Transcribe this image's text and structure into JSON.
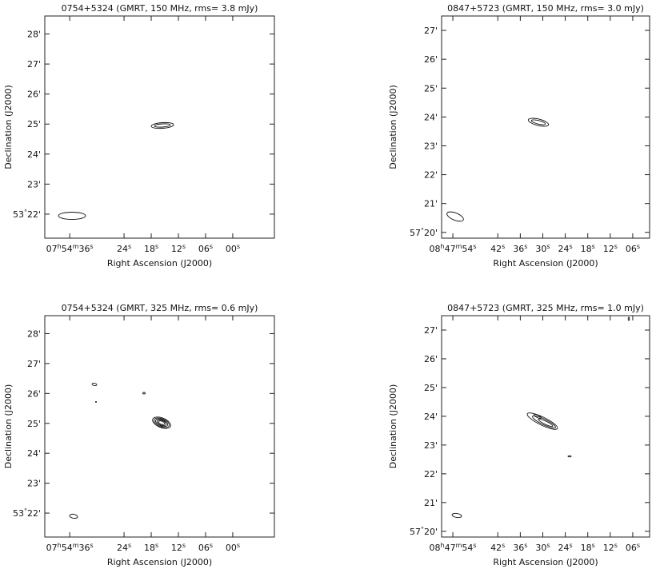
{
  "chart_data": [
    {
      "type": "contour",
      "title": "0754+5324 (GMRT, 150 MHz, rms= 3.8 mJy)",
      "xlabel": "Right Ascension (J2000)",
      "ylabel": "Declination (J2000)",
      "xlim": [
        41.5,
        -9.2
      ],
      "ylim": [
        21.2,
        28.6
      ],
      "xticks": [
        {
          "value": 36,
          "label": "07h54m36s"
        },
        {
          "value": 24,
          "label": "24s"
        },
        {
          "value": 18,
          "label": "18s"
        },
        {
          "value": 12,
          "label": "12s"
        },
        {
          "value": 6,
          "label": "06s"
        },
        {
          "value": 0,
          "label": "00s"
        }
      ],
      "yticks": [
        {
          "value": 22,
          "label": "53°22'"
        },
        {
          "value": 23,
          "label": "23'"
        },
        {
          "value": 24,
          "label": "24'"
        },
        {
          "value": 25,
          "label": "25'"
        },
        {
          "value": 26,
          "label": "26'"
        },
        {
          "value": 27,
          "label": "27'"
        },
        {
          "value": 28,
          "label": "28'"
        }
      ]
    },
    {
      "type": "contour",
      "title": "0847+5723 (GMRT, 150 MHz, rms= 3.0 mJy)",
      "xlabel": "Right Ascension (J2000)",
      "ylabel": "Declination (J2000)",
      "xlim": [
        57,
        1.5
      ],
      "ylim": [
        19.8,
        27.5
      ],
      "xticks": [
        {
          "value": 54,
          "label": "08h47m54s"
        },
        {
          "value": 42,
          "label": "42s"
        },
        {
          "value": 36,
          "label": "36s"
        },
        {
          "value": 30,
          "label": "30s"
        },
        {
          "value": 24,
          "label": "24s"
        },
        {
          "value": 18,
          "label": "18s"
        },
        {
          "value": 12,
          "label": "12s"
        },
        {
          "value": 6,
          "label": "06s"
        }
      ],
      "yticks": [
        {
          "value": 20,
          "label": "57°20'"
        },
        {
          "value": 21,
          "label": "21'"
        },
        {
          "value": 22,
          "label": "22'"
        },
        {
          "value": 23,
          "label": "23'"
        },
        {
          "value": 24,
          "label": "24'"
        },
        {
          "value": 25,
          "label": "25'"
        },
        {
          "value": 26,
          "label": "26'"
        },
        {
          "value": 27,
          "label": "27'"
        }
      ]
    },
    {
      "type": "contour",
      "title": "0754+5324 (GMRT, 325 MHz, rms= 0.6 mJy)",
      "xlabel": "Right Ascension (J2000)",
      "ylabel": "Declination (J2000)",
      "xlim": [
        41.5,
        -9.2
      ],
      "ylim": [
        21.2,
        28.6
      ],
      "xticks": [
        {
          "value": 36,
          "label": "07h54m36s"
        },
        {
          "value": 24,
          "label": "24s"
        },
        {
          "value": 18,
          "label": "18s"
        },
        {
          "value": 12,
          "label": "12s"
        },
        {
          "value": 6,
          "label": "06s"
        },
        {
          "value": 0,
          "label": "00s"
        }
      ],
      "yticks": [
        {
          "value": 22,
          "label": "53°22'"
        },
        {
          "value": 23,
          "label": "23'"
        },
        {
          "value": 24,
          "label": "24'"
        },
        {
          "value": 25,
          "label": "25'"
        },
        {
          "value": 26,
          "label": "26'"
        },
        {
          "value": 27,
          "label": "27'"
        },
        {
          "value": 28,
          "label": "28'"
        }
      ]
    },
    {
      "type": "contour",
      "title": "0847+5723 (GMRT, 325 MHz, rms= 1.0 mJy)",
      "xlabel": "Right Ascension (J2000)",
      "ylabel": "Declination (J2000)",
      "xlim": [
        57,
        1.5
      ],
      "ylim": [
        19.8,
        27.5
      ],
      "xticks": [
        {
          "value": 54,
          "label": "08h47m54s"
        },
        {
          "value": 42,
          "label": "42s"
        },
        {
          "value": 36,
          "label": "36s"
        },
        {
          "value": 30,
          "label": "30s"
        },
        {
          "value": 24,
          "label": "24s"
        },
        {
          "value": 18,
          "label": "18s"
        },
        {
          "value": 12,
          "label": "12s"
        },
        {
          "value": 6,
          "label": "06s"
        }
      ],
      "yticks": [
        {
          "value": 20,
          "label": "57°20'"
        },
        {
          "value": 21,
          "label": "21'"
        },
        {
          "value": 22,
          "label": "22'"
        },
        {
          "value": 23,
          "label": "23'"
        },
        {
          "value": 24,
          "label": "24'"
        },
        {
          "value": 25,
          "label": "25'"
        },
        {
          "value": 26,
          "label": "26'"
        },
        {
          "value": 27,
          "label": "27'"
        }
      ]
    }
  ]
}
